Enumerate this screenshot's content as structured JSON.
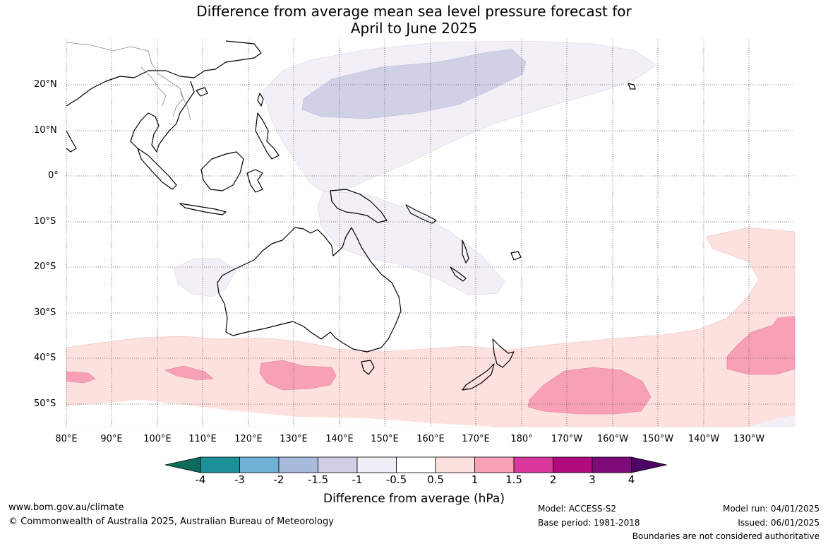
{
  "title_line1": "Difference from average mean sea level pressure forecast for",
  "title_line2": "April to June 2025",
  "lat_labels": [
    "20°N",
    "10°N",
    "0°",
    "10°S",
    "20°S",
    "30°S",
    "40°S",
    "50°S"
  ],
  "lon_labels": [
    "80°E",
    "90°E",
    "100°E",
    "110°E",
    "120°E",
    "130°E",
    "140°E",
    "150°E",
    "160°E",
    "170°E",
    "180°",
    "170°W",
    "160°W",
    "150°W",
    "140°W",
    "130°W"
  ],
  "colorbar": {
    "title": "Difference from average (hPa)",
    "ticks": [
      "-4",
      "-3",
      "-2",
      "-1.5",
      "-1",
      "-0.5",
      "0.5",
      "1",
      "1.5",
      "2",
      "3",
      "4"
    ],
    "colors": [
      "#0e6b5b",
      "#1b9099",
      "#6fb0d6",
      "#a8bbdb",
      "#cfd0e6",
      "#efeff7",
      "#ffffff",
      "#fce1df",
      "#f8a0b6",
      "#d9379b",
      "#b2097c",
      "#7f0a7a",
      "#4c0564"
    ]
  },
  "footer": {
    "url": "www.bom.gov.au/climate",
    "copyright": "© Commonwealth of Australia 2025, Australian Bureau of Meteorology",
    "model": "Model: ACCESS-S2",
    "base_period": "Base period: 1981-2018",
    "model_run": "Model run: 04/01/2025",
    "issued": "Issued: 06/01/2025",
    "boundaries": "Boundaries are not considered authoritative"
  }
}
